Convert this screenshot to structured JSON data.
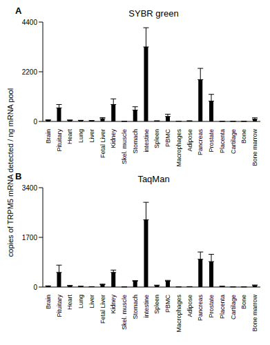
{
  "chart_data": [
    {
      "type": "bar",
      "title": "SYBR green",
      "annotations": [
        "A"
      ],
      "ylabel": "copies of TRPM5 mRNA detected / ng mRNA pool",
      "categories": [
        "Brain",
        "Pituitary",
        "Heart",
        "Lung",
        "Liver",
        "Fetal Liver",
        "Kidney",
        "Skel. muscle",
        "Stomach",
        "intestine",
        "Spleen",
        "PBMC",
        "Macrophages",
        "Adipose",
        "Pancreas",
        "Prostate",
        "Placenta",
        "Cartilage",
        "Bone",
        "Bone marrow"
      ],
      "values": [
        50,
        600,
        50,
        40,
        30,
        120,
        750,
        5,
        500,
        3300,
        20,
        220,
        10,
        20,
        1850,
        900,
        5,
        5,
        5,
        100
      ],
      "errors": [
        20,
        150,
        15,
        10,
        10,
        50,
        250,
        3,
        150,
        850,
        10,
        100,
        5,
        10,
        500,
        300,
        3,
        3,
        3,
        60
      ],
      "color": "#000000",
      "ylim": [
        0,
        4400
      ],
      "yticks": [
        0,
        2200,
        4400
      ],
      "grid": false
    },
    {
      "type": "bar",
      "title": "TaqMan",
      "annotations": [
        "B"
      ],
      "categories": [
        "Brain",
        "Pituitary",
        "Heart",
        "Lung",
        "Liver",
        "Fetal Liver",
        "Kidney",
        "Skel. muscle",
        "Stomach",
        "intestine",
        "Spleen",
        "PBMC",
        "Macrophages",
        "Adipose",
        "Pancreas",
        "Prostate",
        "Placenta",
        "Cartilage",
        "Bone",
        "Bone marrow"
      ],
      "values": [
        30,
        500,
        40,
        20,
        10,
        80,
        500,
        5,
        200,
        2300,
        50,
        200,
        5,
        10,
        950,
        870,
        20,
        5,
        5,
        50
      ],
      "errors": [
        10,
        250,
        15,
        8,
        5,
        20,
        80,
        3,
        20,
        600,
        15,
        30,
        3,
        5,
        250,
        250,
        8,
        3,
        3,
        20
      ],
      "color": "#000000",
      "ylim": [
        0,
        3400
      ],
      "yticks": [
        0,
        1700,
        3400
      ],
      "grid": false
    }
  ]
}
